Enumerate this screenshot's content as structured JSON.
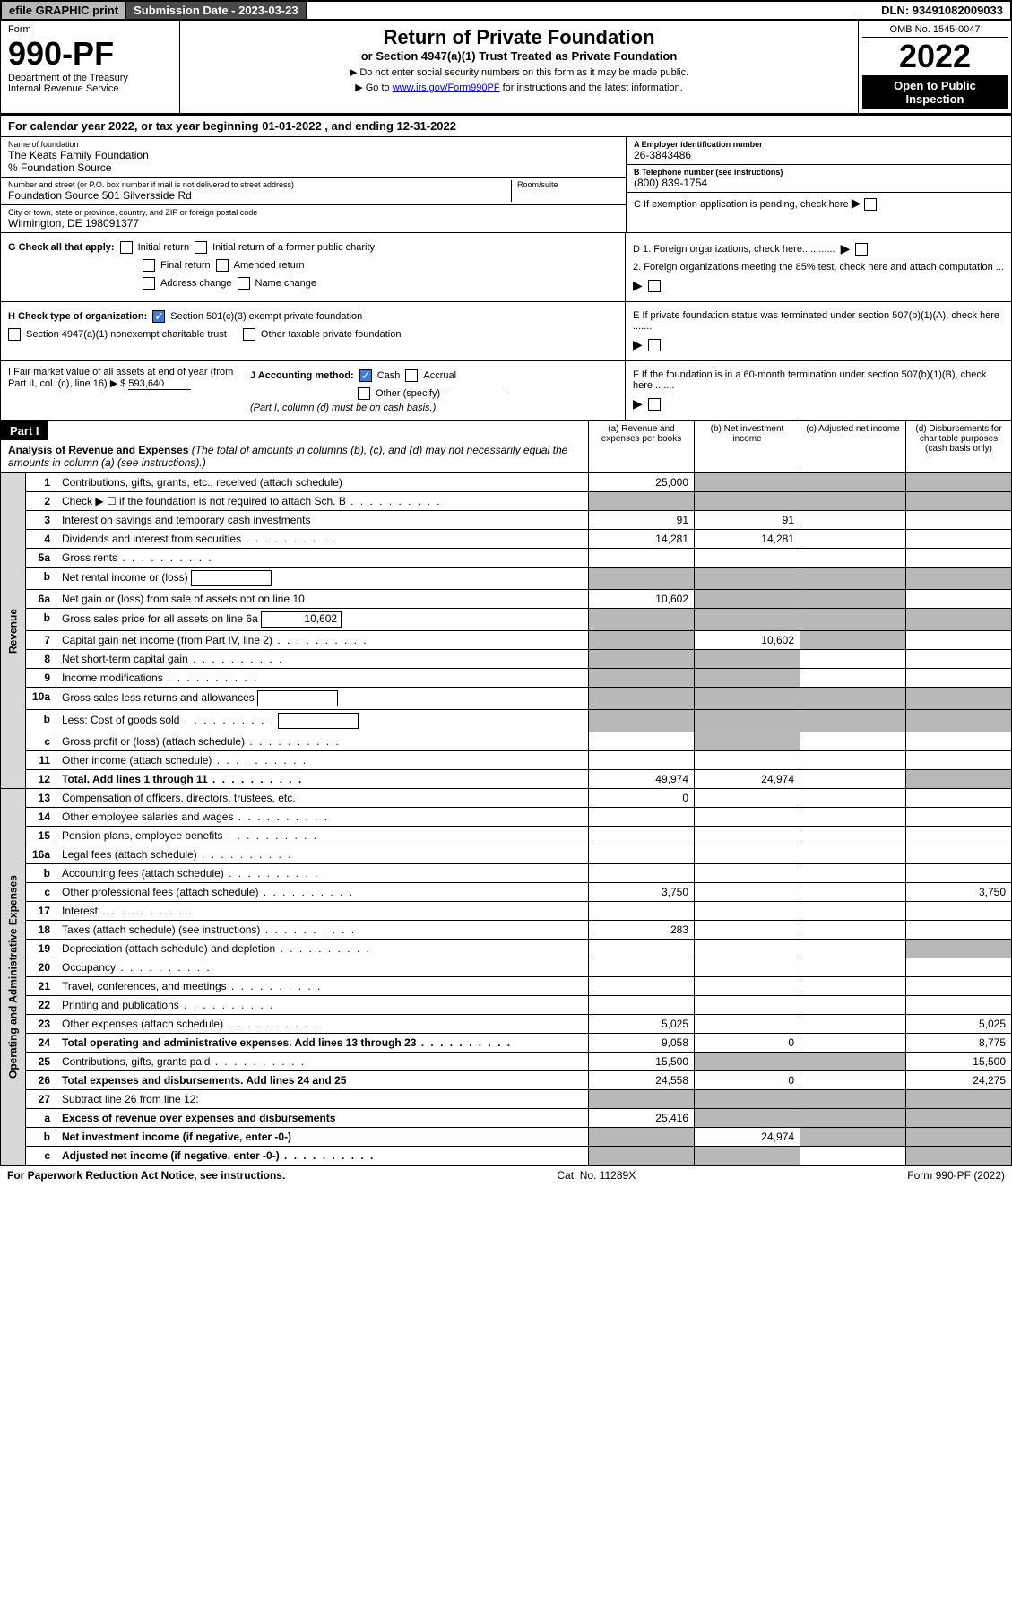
{
  "topbar": {
    "efile": "efile GRAPHIC print",
    "submission": "Submission Date - 2023-03-23",
    "dln": "DLN: 93491082009033"
  },
  "header": {
    "form_label": "Form",
    "form_num": "990-PF",
    "dept": "Department of the Treasury",
    "irs": "Internal Revenue Service",
    "title": "Return of Private Foundation",
    "subtitle": "or Section 4947(a)(1) Trust Treated as Private Foundation",
    "note1": "▶ Do not enter social security numbers on this form as it may be made public.",
    "note2_pre": "▶ Go to ",
    "note2_link": "www.irs.gov/Form990PF",
    "note2_post": " for instructions and the latest information.",
    "omb": "OMB No. 1545-0047",
    "year": "2022",
    "open": "Open to Public Inspection"
  },
  "calyear": "For calendar year 2022, or tax year beginning 01-01-2022                         , and ending 12-31-2022",
  "info": {
    "name_lbl": "Name of foundation",
    "name": "The Keats Family Foundation",
    "source": "% Foundation Source",
    "addr_lbl": "Number and street (or P.O. box number if mail is not delivered to street address)",
    "addr": "Foundation Source 501 Silversside Rd",
    "room_lbl": "Room/suite",
    "city_lbl": "City or town, state or province, country, and ZIP or foreign postal code",
    "city": "Wilmington, DE  198091377",
    "ein_lbl": "A Employer identification number",
    "ein": "26-3843486",
    "tel_lbl": "B Telephone number (see instructions)",
    "tel": "(800) 839-1754",
    "c": "C If exemption application is pending, check here",
    "d1": "D 1. Foreign organizations, check here............",
    "d2": "2. Foreign organizations meeting the 85% test, check here and attach computation ...",
    "e": "E  If private foundation status was terminated under section 507(b)(1)(A), check here .......",
    "f": "F  If the foundation is in a 60-month termination under section 507(b)(1)(B), check here ......."
  },
  "g": {
    "label": "G Check all that apply:",
    "opts": [
      "Initial return",
      "Initial return of a former public charity",
      "Final return",
      "Amended return",
      "Address change",
      "Name change"
    ]
  },
  "h": {
    "label": "H Check type of organization:",
    "opt1": "Section 501(c)(3) exempt private foundation",
    "opt2": "Section 4947(a)(1) nonexempt charitable trust",
    "opt3": "Other taxable private foundation"
  },
  "i": {
    "label": "I Fair market value of all assets at end of year (from Part II, col. (c), line 16) ▶ $",
    "val": "593,640"
  },
  "j": {
    "label": "J Accounting method:",
    "cash": "Cash",
    "accrual": "Accrual",
    "other": "Other (specify)",
    "note": "(Part I, column (d) must be on cash basis.)"
  },
  "part1": {
    "label": "Part I",
    "title": "Analysis of Revenue and Expenses",
    "note": "(The total of amounts in columns (b), (c), and (d) may not necessarily equal the amounts in column (a) (see instructions).)",
    "cols": {
      "a": "(a)   Revenue and expenses per books",
      "b": "(b)   Net investment income",
      "c": "(c)   Adjusted net income",
      "d": "(d)   Disbursements for charitable purposes (cash basis only)"
    }
  },
  "sections": {
    "rev": "Revenue",
    "exp": "Operating and Administrative Expenses"
  },
  "rows": [
    {
      "n": "1",
      "d": "Contributions, gifts, grants, etc., received (attach schedule)",
      "a": "25,000",
      "shade": [
        "b",
        "c",
        "d"
      ]
    },
    {
      "n": "2",
      "d": "Check ▶ ☐ if the foundation is not required to attach Sch. B",
      "dots": true,
      "shade": [
        "a",
        "b",
        "c",
        "d"
      ]
    },
    {
      "n": "3",
      "d": "Interest on savings and temporary cash investments",
      "a": "91",
      "b": "91"
    },
    {
      "n": "4",
      "d": "Dividends and interest from securities",
      "dots": true,
      "a": "14,281",
      "b": "14,281"
    },
    {
      "n": "5a",
      "d": "Gross rents",
      "dots": true
    },
    {
      "n": "b",
      "d": "Net rental income or (loss)",
      "inner": true,
      "shade": [
        "a",
        "b",
        "c",
        "d"
      ]
    },
    {
      "n": "6a",
      "d": "Net gain or (loss) from sale of assets not on line 10",
      "a": "10,602",
      "shade": [
        "b",
        "c"
      ]
    },
    {
      "n": "b",
      "d": "Gross sales price for all assets on line 6a",
      "inner": true,
      "ival": "10,602",
      "shade": [
        "a",
        "b",
        "c",
        "d"
      ]
    },
    {
      "n": "7",
      "d": "Capital gain net income (from Part IV, line 2)",
      "dots": true,
      "b": "10,602",
      "shade": [
        "a",
        "c"
      ]
    },
    {
      "n": "8",
      "d": "Net short-term capital gain",
      "dots": true,
      "shade": [
        "a",
        "b"
      ]
    },
    {
      "n": "9",
      "d": "Income modifications",
      "dots": true,
      "shade": [
        "a",
        "b"
      ]
    },
    {
      "n": "10a",
      "d": "Gross sales less returns and allowances",
      "inner": true,
      "shade": [
        "a",
        "b",
        "c",
        "d"
      ]
    },
    {
      "n": "b",
      "d": "Less: Cost of goods sold",
      "dots": true,
      "inner": true,
      "shade": [
        "a",
        "b",
        "c",
        "d"
      ]
    },
    {
      "n": "c",
      "d": "Gross profit or (loss) (attach schedule)",
      "dots": true,
      "shade": [
        "b"
      ]
    },
    {
      "n": "11",
      "d": "Other income (attach schedule)",
      "dots": true
    },
    {
      "n": "12",
      "d": "Total. Add lines 1 through 11",
      "dots": true,
      "bold": true,
      "a": "49,974",
      "b": "24,974",
      "shade": [
        "d"
      ]
    },
    {
      "sec": "exp"
    },
    {
      "n": "13",
      "d": "Compensation of officers, directors, trustees, etc.",
      "a": "0"
    },
    {
      "n": "14",
      "d": "Other employee salaries and wages",
      "dots": true
    },
    {
      "n": "15",
      "d": "Pension plans, employee benefits",
      "dots": true
    },
    {
      "n": "16a",
      "d": "Legal fees (attach schedule)",
      "dots": true
    },
    {
      "n": "b",
      "d": "Accounting fees (attach schedule)",
      "dots": true
    },
    {
      "n": "c",
      "d": "Other professional fees (attach schedule)",
      "dots": true,
      "a": "3,750",
      "dcol": "3,750"
    },
    {
      "n": "17",
      "d": "Interest",
      "dots": true
    },
    {
      "n": "18",
      "d": "Taxes (attach schedule) (see instructions)",
      "dots": true,
      "a": "283"
    },
    {
      "n": "19",
      "d": "Depreciation (attach schedule) and depletion",
      "dots": true,
      "shade": [
        "d"
      ]
    },
    {
      "n": "20",
      "d": "Occupancy",
      "dots": true
    },
    {
      "n": "21",
      "d": "Travel, conferences, and meetings",
      "dots": true
    },
    {
      "n": "22",
      "d": "Printing and publications",
      "dots": true
    },
    {
      "n": "23",
      "d": "Other expenses (attach schedule)",
      "dots": true,
      "a": "5,025",
      "dcol": "5,025"
    },
    {
      "n": "24",
      "d": "Total operating and administrative expenses. Add lines 13 through 23",
      "dots": true,
      "bold": true,
      "a": "9,058",
      "b": "0",
      "dcol": "8,775"
    },
    {
      "n": "25",
      "d": "Contributions, gifts, grants paid",
      "dots": true,
      "a": "15,500",
      "shade": [
        "b",
        "c"
      ],
      "dcol": "15,500"
    },
    {
      "n": "26",
      "d": "Total expenses and disbursements. Add lines 24 and 25",
      "bold": true,
      "a": "24,558",
      "b": "0",
      "dcol": "24,275"
    },
    {
      "n": "27",
      "d": "Subtract line 26 from line 12:",
      "shade": [
        "a",
        "b",
        "c",
        "d"
      ]
    },
    {
      "n": "a",
      "d": "Excess of revenue over expenses and disbursements",
      "bold": true,
      "a": "25,416",
      "shade": [
        "b",
        "c",
        "d"
      ]
    },
    {
      "n": "b",
      "d": "Net investment income (if negative, enter -0-)",
      "bold": true,
      "b": "24,974",
      "shade": [
        "a",
        "c",
        "d"
      ]
    },
    {
      "n": "c",
      "d": "Adjusted net income (if negative, enter -0-)",
      "dots": true,
      "bold": true,
      "shade": [
        "a",
        "b",
        "d"
      ]
    }
  ],
  "footer": {
    "left": "For Paperwork Reduction Act Notice, see instructions.",
    "mid": "Cat. No. 11289X",
    "right": "Form 990-PF (2022)"
  }
}
